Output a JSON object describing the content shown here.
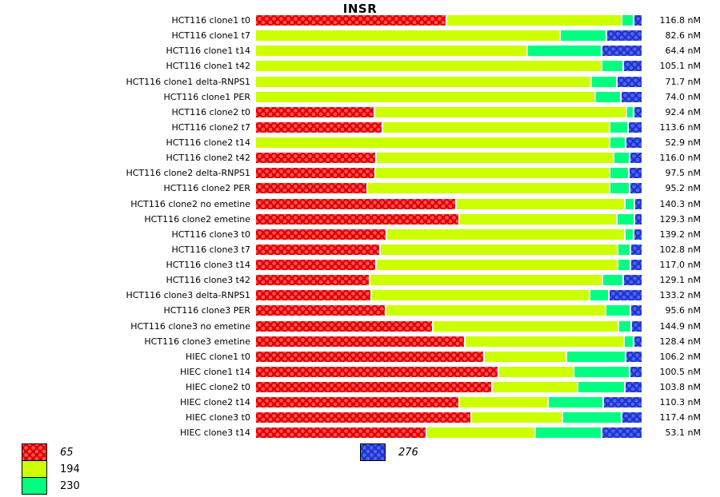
{
  "title": "INSR",
  "colors": {
    "red_base": "#E00000",
    "red_dot": "#FF5252",
    "yellow_green": "#CCFF00",
    "spring_green": "#00FF80",
    "blue_base": "#2233CC",
    "blue_dot": "#4A66F2"
  },
  "legend": {
    "left": [
      {
        "label": "65",
        "style": "red",
        "italic": true
      },
      {
        "label": "194",
        "style": "yellow_green",
        "italic": false
      },
      {
        "label": "230",
        "style": "spring_green",
        "italic": false
      }
    ],
    "mid": [
      {
        "label": "276",
        "style": "blue",
        "italic": true
      }
    ]
  },
  "chart_data": {
    "type": "bar",
    "orientation": "horizontal",
    "stacked": true,
    "normalized_percent": true,
    "title": "INSR",
    "value_unit": "nM",
    "series": [
      "65",
      "194",
      "230",
      "276"
    ],
    "series_styles": [
      "red",
      "yellow_green",
      "spring_green",
      "blue"
    ],
    "rows": [
      {
        "label": "HCT116 clone1 t0",
        "value": "116.8 nM",
        "pct": [
          49.8,
          45.6,
          2.7,
          1.9
        ]
      },
      {
        "label": "HCT116 clone1 t7",
        "value": "82.6 nM",
        "pct": [
          0,
          79.3,
          11.7,
          9.0
        ]
      },
      {
        "label": "HCT116 clone1 t14",
        "value": "64.4 nM",
        "pct": [
          0,
          70.8,
          19.0,
          10.2
        ]
      },
      {
        "label": "HCT116 clone1 t42",
        "value": "105.1 nM",
        "pct": [
          0,
          90.2,
          5.2,
          4.6
        ]
      },
      {
        "label": "HCT116 clone1 delta-RNPS1",
        "value": "71.7 nM",
        "pct": [
          0,
          87.4,
          6.3,
          6.3
        ]
      },
      {
        "label": "HCT116 clone1 PER",
        "value": "74.0 nM",
        "pct": [
          0,
          88.5,
          6.3,
          5.2
        ]
      },
      {
        "label": "HCT116 clone2 t0",
        "value": "92.4 nM",
        "pct": [
          30.9,
          65.8,
          1.5,
          1.8
        ]
      },
      {
        "label": "HCT116 clone2 t7",
        "value": "113.6 nM",
        "pct": [
          32.9,
          59.3,
          4.4,
          3.4
        ]
      },
      {
        "label": "HCT116 clone2 t14",
        "value": "52.9 nM",
        "pct": [
          0,
          92.3,
          3.8,
          3.9
        ]
      },
      {
        "label": "HCT116 clone2 t42",
        "value": "116.0 nM",
        "pct": [
          31.2,
          62.1,
          3.8,
          2.9
        ]
      },
      {
        "label": "HCT116 clone2 delta-RNPS1",
        "value": "97.5 nM",
        "pct": [
          31.0,
          61.2,
          4.6,
          3.2
        ]
      },
      {
        "label": "HCT116 clone2 PER",
        "value": "95.2 nM",
        "pct": [
          29.0,
          63.2,
          4.8,
          3.0
        ]
      },
      {
        "label": "HCT116 clone2 no emetine",
        "value": "140.3 nM",
        "pct": [
          52.3,
          43.9,
          2.1,
          1.7
        ]
      },
      {
        "label": "HCT116 clone2 emetine",
        "value": "129.3 nM",
        "pct": [
          53.2,
          40.9,
          4.2,
          1.7
        ]
      },
      {
        "label": "HCT116 clone3 t0",
        "value": "139.2 nM",
        "pct": [
          34.0,
          62.2,
          1.9,
          1.9
        ]
      },
      {
        "label": "HCT116 clone3 t7",
        "value": "102.8 nM",
        "pct": [
          32.4,
          62.0,
          2.9,
          2.7
        ]
      },
      {
        "label": "HCT116 clone3 t14",
        "value": "117.0 nM",
        "pct": [
          31.2,
          63.2,
          2.9,
          2.7
        ]
      },
      {
        "label": "HCT116 clone3 t42",
        "value": "129.1 nM",
        "pct": [
          29.7,
          60.6,
          5.1,
          4.6
        ]
      },
      {
        "label": "HCT116 clone3 delta-RNPS1",
        "value": "133.2 nM",
        "pct": [
          30.0,
          57.0,
          4.6,
          8.4
        ]
      },
      {
        "label": "HCT116 clone3 PER",
        "value": "95.6 nM",
        "pct": [
          33.9,
          57.3,
          6.1,
          2.7
        ]
      },
      {
        "label": "HCT116 clone3 no emetine",
        "value": "144.9 nM",
        "pct": [
          46.3,
          48.2,
          2.9,
          2.6
        ]
      },
      {
        "label": "HCT116 clone3 emetine",
        "value": "128.4 nM",
        "pct": [
          54.6,
          41.4,
          2.1,
          1.9
        ]
      },
      {
        "label": "HIEC clone1 t0",
        "value": "106.2 nM",
        "pct": [
          59.7,
          21.2,
          15.1,
          4.0
        ]
      },
      {
        "label": "HIEC clone1 t14",
        "value": "100.5 nM",
        "pct": [
          63.5,
          19.2,
          14.3,
          3.0
        ]
      },
      {
        "label": "HIEC clone2 t0",
        "value": "103.8 nM",
        "pct": [
          61.7,
          22.1,
          12.0,
          4.2
        ]
      },
      {
        "label": "HIEC clone2 t14",
        "value": "110.3 nM",
        "pct": [
          53.1,
          23.0,
          14.0,
          9.9
        ]
      },
      {
        "label": "HIEC clone3 t0",
        "value": "117.4 nM",
        "pct": [
          56.3,
          23.6,
          15.1,
          5.0
        ]
      },
      {
        "label": "HIEC clone3 t14",
        "value": "53.1 nM",
        "pct": [
          44.5,
          28.2,
          17.1,
          10.2
        ]
      }
    ]
  }
}
